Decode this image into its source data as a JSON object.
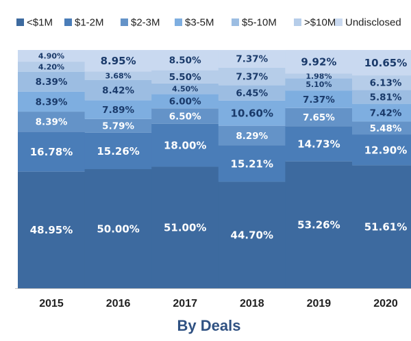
{
  "chart_data": {
    "type": "bar",
    "stacked": true,
    "title": "By Deals",
    "categories": [
      "2015",
      "2016",
      "2017",
      "2018",
      "2019",
      "2020"
    ],
    "ylim": [
      0,
      100
    ],
    "legend": "top",
    "grid": false,
    "series": [
      {
        "name": "<$1M",
        "color": "#3d6a9f",
        "label_color": "#ffffff",
        "labels": [
          "48.95%",
          "50.00%",
          "51.00%",
          "44.70%",
          "53.26%",
          "51.61%"
        ],
        "values": [
          48.95,
          50.0,
          51.0,
          44.7,
          53.26,
          51.61
        ]
      },
      {
        "name": "$1-2M",
        "color": "#4a7db8",
        "label_color": "#ffffff",
        "labels": [
          "16.78%",
          "15.26%",
          "18.00%",
          "15.21%",
          "14.73%",
          "12.90%"
        ],
        "values": [
          16.78,
          15.26,
          18.0,
          15.21,
          14.73,
          12.9
        ]
      },
      {
        "name": "$2-3M",
        "color": "#6493c8",
        "label_color": "#ffffff",
        "labels": [
          "8.39%",
          "5.79%",
          "6.50%",
          "8.29%",
          "7.65%",
          "5.48%"
        ],
        "values": [
          8.39,
          5.79,
          6.5,
          8.29,
          7.65,
          5.48
        ]
      },
      {
        "name": "$3-5M",
        "color": "#7eaee0",
        "label_color": "#1a3a6a",
        "labels": [
          "8.39%",
          "7.89%",
          "6.00%",
          "10.60%",
          "7.37%",
          "7.42%"
        ],
        "values": [
          8.39,
          7.89,
          6.0,
          10.6,
          7.37,
          7.42
        ]
      },
      {
        "name": "$5-10M",
        "color": "#9cbde2",
        "label_color": "#1a3a6a",
        "labels": [
          "8.39%",
          "8.42%",
          "4.50%",
          "6.45%",
          "5.10%",
          "5.81%"
        ],
        "values": [
          8.39,
          8.42,
          4.5,
          6.45,
          5.1,
          5.81
        ]
      },
      {
        "name": ">$10M",
        "color": "#b6cde9",
        "label_color": "#1a3a6a",
        "labels": [
          "4.20%",
          "3.68%",
          "5.50%",
          "7.37%",
          "1.98%",
          "6.13%"
        ],
        "values": [
          4.2,
          3.68,
          5.5,
          7.37,
          1.98,
          6.13
        ]
      },
      {
        "name": "Undisclosed",
        "color": "#c9d9f0",
        "label_color": "#1a3a6a",
        "labels": [
          "4.90%",
          "8.95%",
          "8.50%",
          "7.37%",
          "9.92%",
          "10.65%"
        ],
        "values": [
          4.9,
          8.95,
          8.5,
          7.37,
          9.92,
          10.65
        ]
      }
    ]
  }
}
